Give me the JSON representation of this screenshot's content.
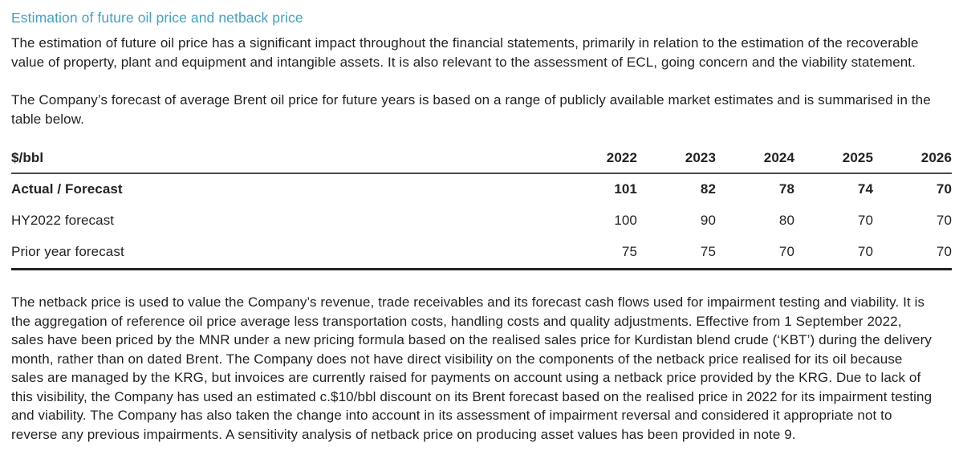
{
  "page": {
    "heading": "Estimation of future oil price and netback price",
    "paragraphs": {
      "intro": "The estimation of future oil price has a significant impact throughout the financial statements, primarily in relation to the estimation of the recoverable value of property, plant and equipment and intangible assets. It is also relevant to the assessment of ECL, going concern and the viability statement.",
      "forecast_basis": "The Company’s forecast of average Brent oil price for future years is based on a range of publicly available market estimates and is summarised in the table below.",
      "netback": "The netback price is used to value the Company’s revenue, trade receivables and its forecast cash flows used for impairment testing and viability. It is the aggregation of reference oil price average less transportation costs, handling costs and quality adjustments. Effective from 1 September 2022, sales have been priced by the MNR under a new pricing formula based on the realised sales price for Kurdistan blend crude (‘KBT’) during the delivery month, rather than on dated Brent. The Company does not have direct visibility on the components of the netback price realised for its oil because sales are managed by the KRG, but invoices are currently raised for payments on account using a netback price provided by the KRG. Due to lack of this visibility, the Company has used an estimated c.$10/bbl discount on its Brent forecast based on the realised price in 2022 for its impairment testing and viability. The Company has also taken the change into account in its assessment of impairment reversal and considered it appropriate not to reverse any previous impairments. A sensitivity analysis of netback price on producing asset values has been provided in note 9."
    }
  },
  "table": {
    "unit_header": "$/bbl",
    "columns": [
      "2022",
      "2023",
      "2024",
      "2025",
      "2026"
    ],
    "rows": [
      {
        "label": "Actual / Forecast",
        "values": [
          "101",
          "82",
          "78",
          "74",
          "70"
        ],
        "bold": true
      },
      {
        "label": "HY2022 forecast",
        "values": [
          "100",
          "90",
          "80",
          "70",
          "70"
        ],
        "bold": false
      },
      {
        "label": "Prior year forecast",
        "values": [
          "75",
          "75",
          "70",
          "70",
          "70"
        ],
        "bold": false
      }
    ]
  },
  "colors": {
    "heading_blue": "#3fa3cd",
    "body_text": "#232323",
    "header_rule": "#4a4a4a",
    "bottom_rule": "#222222"
  }
}
